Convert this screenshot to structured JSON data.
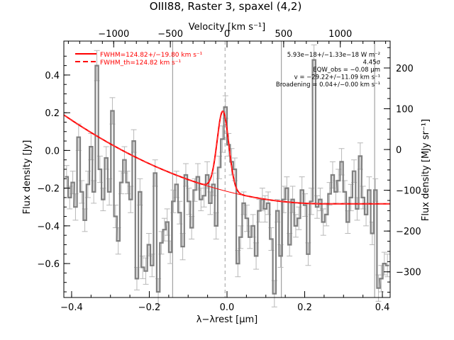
{
  "chart_data": {
    "type": "line",
    "title": "OIII88, Raster 3, spaxel (4,2)",
    "xlabel": "λ−λrest [μm]",
    "ylabel_left": "Flux density [Jy]",
    "ylabel_right": "Flux density [MJy sr⁻¹]",
    "xlabel_top": "Velocity [km s⁻¹]",
    "xlim": [
      -0.42,
      0.42
    ],
    "ylim": [
      -0.78,
      0.58
    ],
    "right_ylim": [
      -363,
      266
    ],
    "top_xlim": [
      -1440,
      1440
    ],
    "x_ticks": [
      -0.4,
      -0.2,
      0.0,
      0.2,
      0.4
    ],
    "x_tick_labels": [
      "−0.4",
      "−0.2",
      "0.0",
      "0.2",
      "0.4"
    ],
    "y_ticks": [
      -0.6,
      -0.4,
      -0.2,
      0.0,
      0.2,
      0.4
    ],
    "y_tick_labels": [
      "−0.6",
      "−0.4",
      "−0.2",
      "0.0",
      "0.2",
      "0.4"
    ],
    "right_ticks": [
      -300,
      -200,
      -100,
      0,
      100,
      200
    ],
    "right_tick_labels": [
      "−300",
      "−200",
      "−100",
      "0",
      "100",
      "200"
    ],
    "top_ticks": [
      -1000,
      -500,
      0,
      500,
      1000
    ],
    "top_tick_labels": [
      "−1000",
      "−500",
      "0",
      "500",
      "1000"
    ],
    "vertical_lines_x": [
      -0.14,
      0.14,
      0.38
    ],
    "center_line_x": -0.005,
    "legend": [
      {
        "label": "FWHM=124.82+/−19.80 km s⁻¹",
        "style": "solid",
        "color": "#ff0000"
      },
      {
        "label": "FWHM_th=124.82 km s⁻¹",
        "style": "dashed",
        "color": "#ff0000"
      }
    ],
    "annotations": [
      "5.93e−18+/−1.33e−18 W m⁻²",
      "4.45σ",
      "EQW_obs = −0.08 μm",
      "v = −29.22+/−11.09 km s⁻¹",
      "Broadening = 0.04+/−0.00 km s⁻¹"
    ],
    "series": [
      {
        "name": "FWHM=124.82+/−19.80 km s⁻¹",
        "kind": "model",
        "color": "#ff0000",
        "baseline": {
          "c0": -0.283,
          "c1": -0.05,
          "c2": 1.05
        },
        "gaussian": {
          "amp": 0.42,
          "center": -0.0105,
          "sigma": 0.015
        }
      }
    ],
    "data_color": "#808080",
    "data": [
      [
        -0.413,
        -0.14,
        0.06
      ],
      [
        -0.405,
        -0.25,
        0.06
      ],
      [
        -0.397,
        -0.17,
        0.06
      ],
      [
        -0.39,
        -0.3,
        0.07
      ],
      [
        -0.382,
        0.07,
        0.07
      ],
      [
        -0.374,
        -0.22,
        0.06
      ],
      [
        -0.366,
        -0.37,
        0.06
      ],
      [
        -0.358,
        -0.18,
        0.07
      ],
      [
        -0.35,
        0.02,
        0.07
      ],
      [
        -0.343,
        -0.22,
        0.06
      ],
      [
        -0.335,
        0.45,
        0.08
      ],
      [
        -0.327,
        -0.1,
        0.07
      ],
      [
        -0.319,
        -0.26,
        0.06
      ],
      [
        -0.311,
        -0.04,
        0.06
      ],
      [
        -0.303,
        -0.22,
        0.07
      ],
      [
        -0.295,
        0.21,
        0.07
      ],
      [
        -0.287,
        -0.35,
        0.06
      ],
      [
        -0.28,
        -0.48,
        0.07
      ],
      [
        -0.272,
        -0.17,
        0.06
      ],
      [
        -0.264,
        -0.05,
        0.07
      ],
      [
        -0.256,
        -0.17,
        0.06
      ],
      [
        -0.248,
        -0.26,
        0.07
      ],
      [
        -0.24,
        0.05,
        0.06
      ],
      [
        -0.232,
        -0.68,
        0.06
      ],
      [
        -0.224,
        -0.22,
        0.07
      ],
      [
        -0.217,
        -0.62,
        0.06
      ],
      [
        -0.209,
        -0.64,
        0.07
      ],
      [
        -0.201,
        -0.5,
        0.06
      ],
      [
        -0.193,
        -0.61,
        0.06
      ],
      [
        -0.185,
        -0.12,
        0.07
      ],
      [
        -0.177,
        -0.75,
        0.07
      ],
      [
        -0.169,
        -0.49,
        0.06
      ],
      [
        -0.161,
        -0.42,
        0.06
      ],
      [
        -0.154,
        -0.38,
        0.07
      ],
      [
        -0.146,
        -0.54,
        0.06
      ],
      [
        -0.138,
        -0.27,
        0.06
      ],
      [
        -0.13,
        -0.18,
        0.07
      ],
      [
        -0.122,
        -0.33,
        0.06
      ],
      [
        -0.114,
        -0.51,
        0.07
      ],
      [
        -0.106,
        -0.13,
        0.06
      ],
      [
        -0.098,
        -0.27,
        0.07
      ],
      [
        -0.091,
        -0.41,
        0.06
      ],
      [
        -0.083,
        -0.21,
        0.06
      ],
      [
        -0.075,
        -0.14,
        0.07
      ],
      [
        -0.067,
        -0.26,
        0.06
      ],
      [
        -0.059,
        -0.24,
        0.06
      ],
      [
        -0.051,
        -0.13,
        0.07
      ],
      [
        -0.043,
        -0.28,
        0.06
      ],
      [
        -0.035,
        -0.18,
        0.06
      ],
      [
        -0.028,
        -0.4,
        0.07
      ],
      [
        -0.02,
        -0.09,
        0.06
      ],
      [
        -0.012,
        0.06,
        0.07
      ],
      [
        -0.004,
        0.23,
        0.06
      ],
      [
        0.004,
        0.03,
        0.06
      ],
      [
        0.012,
        -0.06,
        0.07
      ],
      [
        0.02,
        -0.1,
        0.06
      ],
      [
        0.028,
        -0.6,
        0.07
      ],
      [
        0.035,
        -0.46,
        0.06
      ],
      [
        0.043,
        -0.28,
        0.06
      ],
      [
        0.051,
        -0.36,
        0.07
      ],
      [
        0.059,
        -0.46,
        0.06
      ],
      [
        0.067,
        -0.4,
        0.06
      ],
      [
        0.075,
        -0.56,
        0.07
      ],
      [
        0.083,
        -0.32,
        0.06
      ],
      [
        0.091,
        -0.26,
        0.06
      ],
      [
        0.098,
        -0.31,
        0.07
      ],
      [
        0.106,
        -0.28,
        0.06
      ],
      [
        0.114,
        -0.47,
        0.06
      ],
      [
        0.122,
        -0.76,
        0.07
      ],
      [
        0.13,
        -0.32,
        0.06
      ],
      [
        0.138,
        -0.56,
        0.06
      ],
      [
        0.146,
        -0.26,
        0.07
      ],
      [
        0.154,
        -0.2,
        0.06
      ],
      [
        0.161,
        -0.5,
        0.06
      ],
      [
        0.169,
        -0.26,
        0.07
      ],
      [
        0.177,
        -0.4,
        0.06
      ],
      [
        0.185,
        -0.36,
        0.06
      ],
      [
        0.193,
        -0.21,
        0.07
      ],
      [
        0.201,
        -0.29,
        0.06
      ],
      [
        0.209,
        -0.55,
        0.06
      ],
      [
        0.217,
        -0.27,
        0.07
      ],
      [
        0.224,
        0.48,
        0.08
      ],
      [
        0.232,
        -0.3,
        0.06
      ],
      [
        0.24,
        -0.26,
        0.06
      ],
      [
        0.248,
        -0.38,
        0.07
      ],
      [
        0.256,
        -0.34,
        0.06
      ],
      [
        0.264,
        -0.23,
        0.06
      ],
      [
        0.272,
        -0.13,
        0.07
      ],
      [
        0.28,
        -0.22,
        0.06
      ],
      [
        0.287,
        -0.16,
        0.06
      ],
      [
        0.295,
        -0.06,
        0.07
      ],
      [
        0.303,
        -0.22,
        0.06
      ],
      [
        0.311,
        -0.38,
        0.06
      ],
      [
        0.319,
        -0.25,
        0.07
      ],
      [
        0.327,
        -0.11,
        0.06
      ],
      [
        0.335,
        -0.31,
        0.06
      ],
      [
        0.343,
        -0.03,
        0.07
      ],
      [
        0.35,
        -0.25,
        0.06
      ],
      [
        0.358,
        -0.34,
        0.06
      ],
      [
        0.366,
        -0.21,
        0.07
      ],
      [
        0.374,
        -0.44,
        0.06
      ],
      [
        0.382,
        -0.21,
        0.06
      ],
      [
        0.39,
        -0.73,
        0.07
      ],
      [
        0.397,
        -0.68,
        0.07
      ],
      [
        0.405,
        -0.6,
        0.06
      ],
      [
        0.413,
        -0.61,
        0.06
      ]
    ]
  }
}
